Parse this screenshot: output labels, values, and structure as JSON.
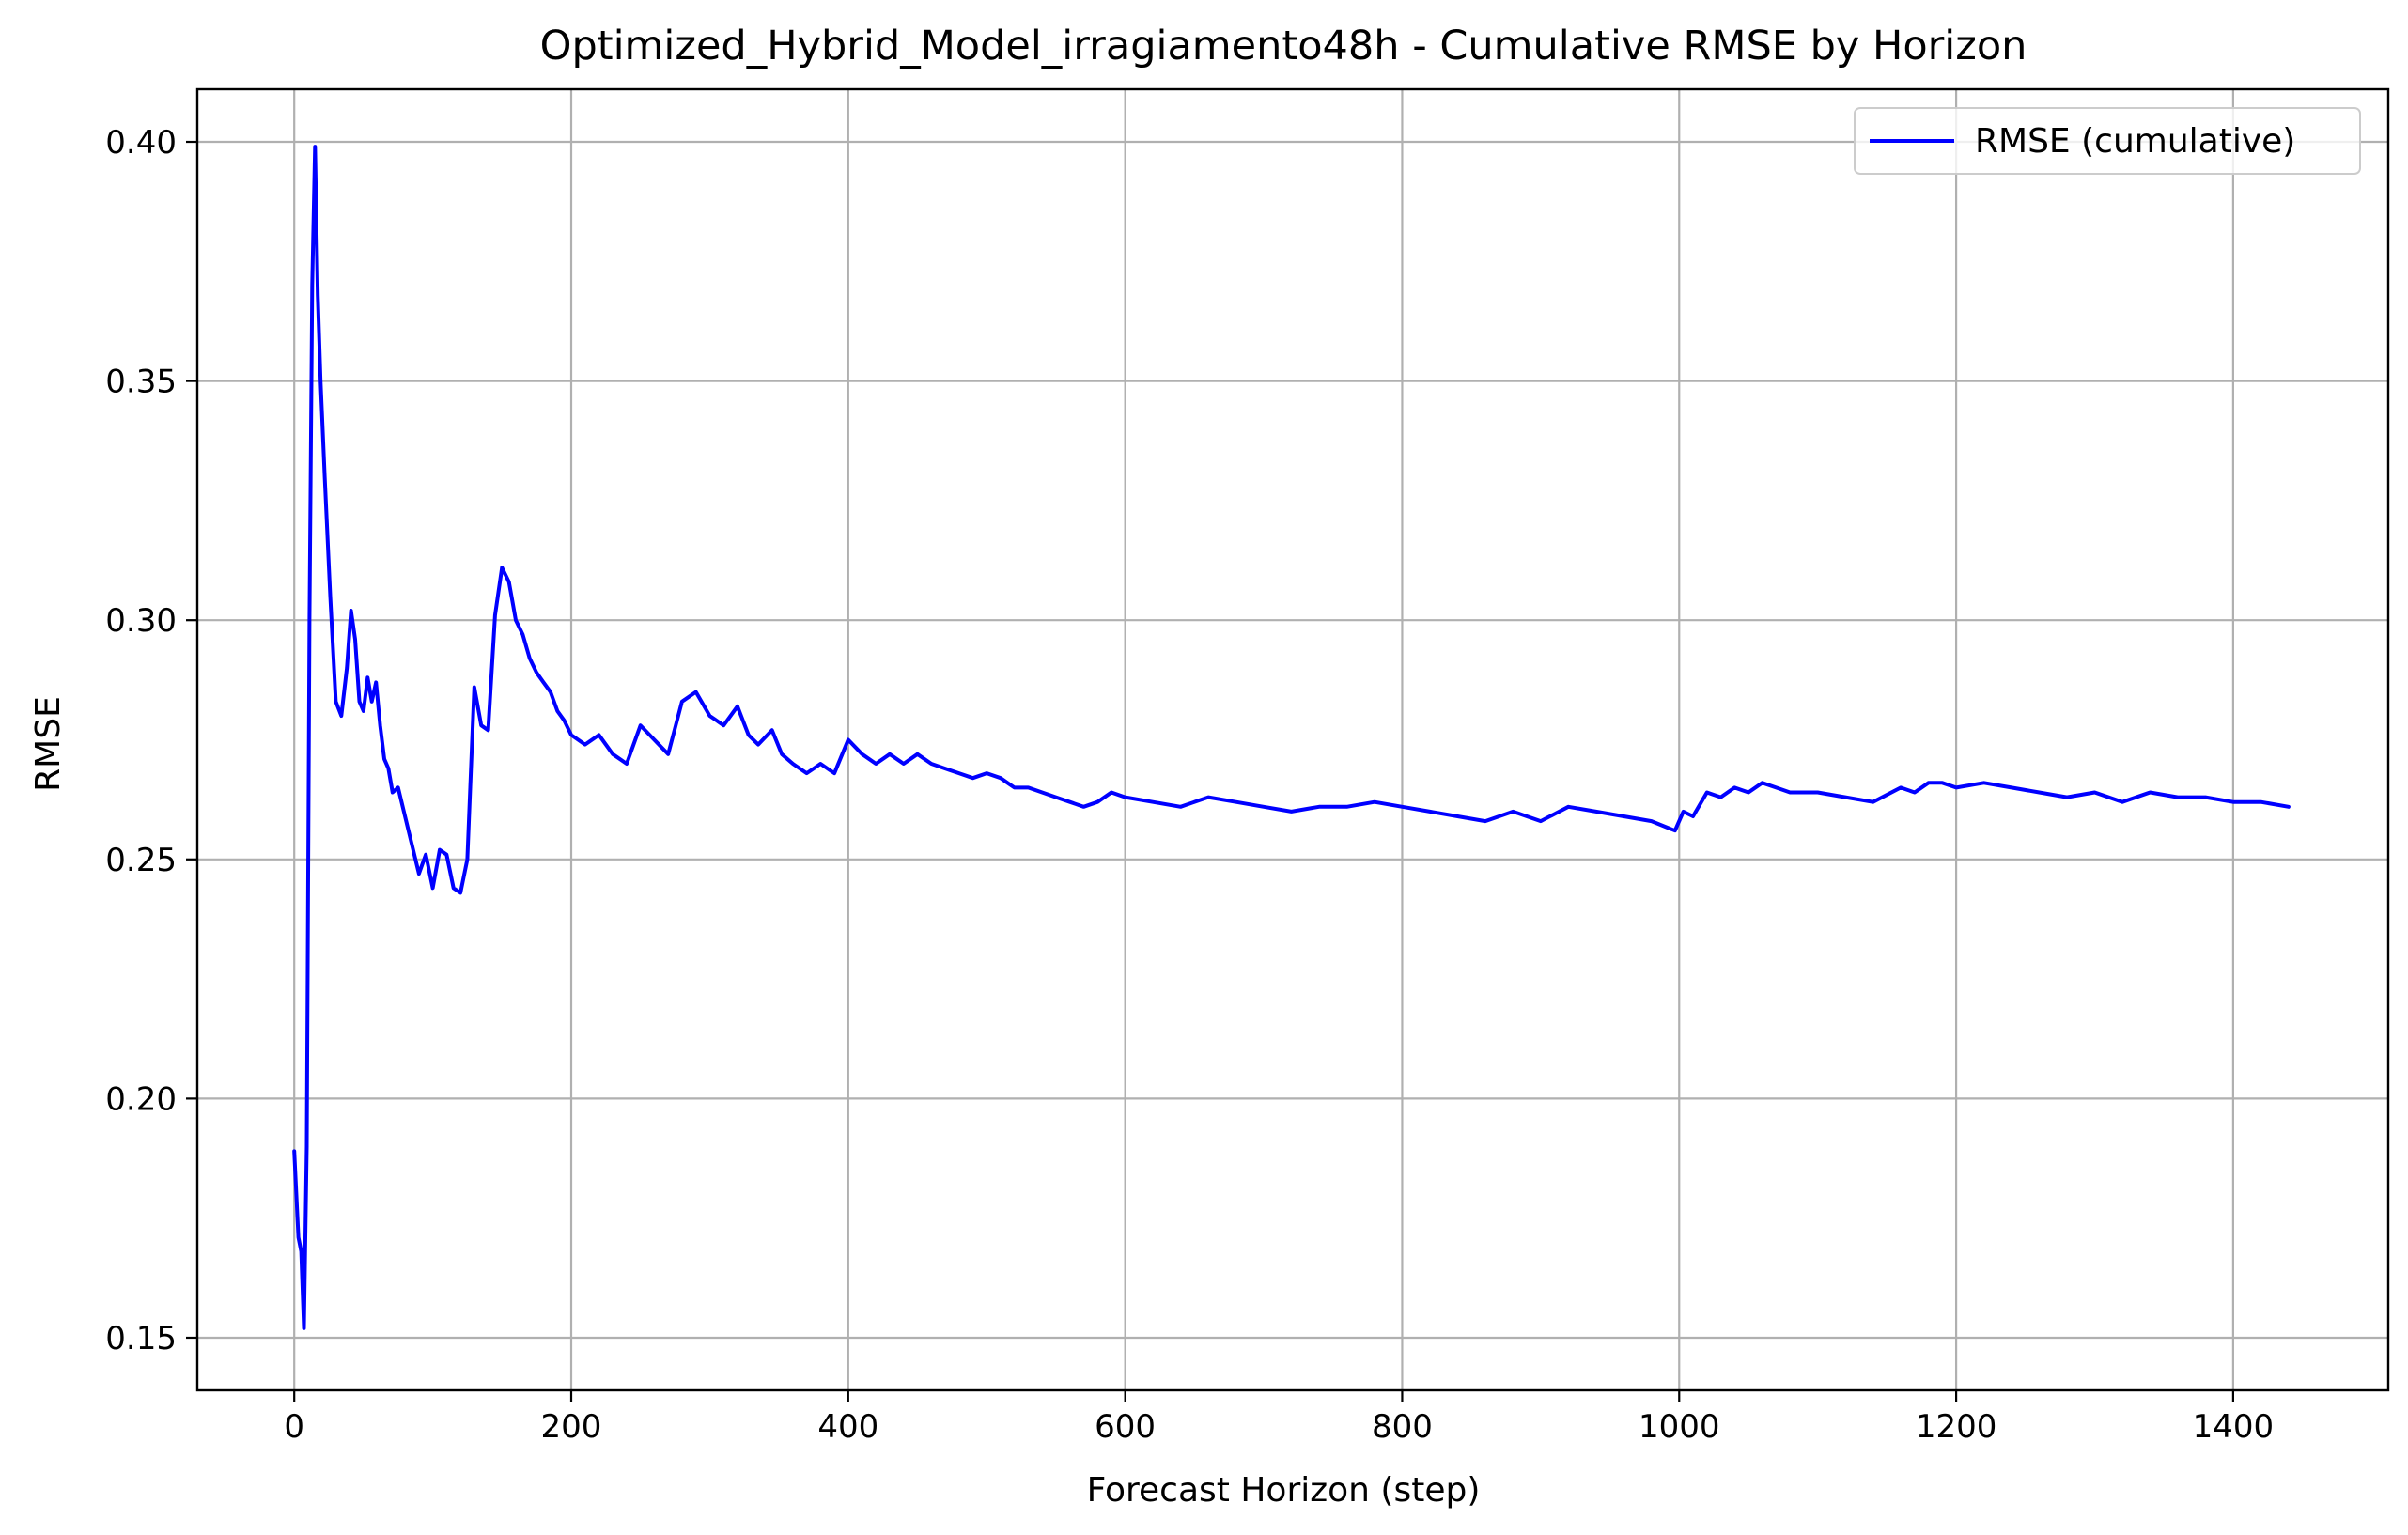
{
  "chart_data": {
    "type": "line",
    "title": "Optimized_Hybrid_Model_irragiamento48h - Cumulative RMSE by Horizon",
    "xlabel": "Forecast Horizon (step)",
    "ylabel": "RMSE",
    "xlim": [
      -70,
      1512
    ],
    "ylim": [
      0.139,
      0.411
    ],
    "xticks": [
      0,
      200,
      400,
      600,
      800,
      1000,
      1200,
      1400
    ],
    "xtick_labels": [
      "0",
      "200",
      "400",
      "600",
      "800",
      "1000",
      "1200",
      "1400"
    ],
    "yticks": [
      0.15,
      0.2,
      0.25,
      0.3,
      0.35,
      0.4
    ],
    "ytick_labels": [
      "0.15",
      "0.20",
      "0.25",
      "0.30",
      "0.35",
      "0.40"
    ],
    "grid": true,
    "legend_position": "upper right",
    "series": [
      {
        "name": "RMSE (cumulative)",
        "color": "#0000ff",
        "x": [
          0,
          3,
          5,
          7,
          9,
          11,
          13,
          15,
          17,
          19,
          22,
          26,
          30,
          34,
          38,
          41,
          44,
          47,
          50,
          53,
          56,
          59,
          62,
          65,
          68,
          71,
          75,
          80,
          85,
          90,
          95,
          100,
          105,
          110,
          115,
          120,
          125,
          130,
          135,
          140,
          145,
          150,
          155,
          160,
          165,
          170,
          175,
          180,
          185,
          190,
          195,
          200,
          210,
          220,
          230,
          240,
          250,
          260,
          270,
          280,
          290,
          300,
          310,
          320,
          328,
          335,
          345,
          352,
          360,
          370,
          375,
          380,
          390,
          400,
          410,
          420,
          430,
          440,
          450,
          460,
          470,
          480,
          490,
          500,
          510,
          515,
          520,
          530,
          540,
          550,
          560,
          570,
          580,
          590,
          600,
          620,
          640,
          660,
          680,
          700,
          720,
          740,
          760,
          780,
          800,
          820,
          840,
          860,
          880,
          900,
          920,
          940,
          960,
          980,
          997,
          1003,
          1010,
          1020,
          1030,
          1040,
          1050,
          1060,
          1070,
          1080,
          1100,
          1120,
          1140,
          1160,
          1170,
          1180,
          1190,
          1200,
          1220,
          1240,
          1260,
          1280,
          1300,
          1320,
          1340,
          1360,
          1380,
          1400,
          1420,
          1440
        ],
        "y": [
          0.189,
          0.171,
          0.168,
          0.152,
          0.19,
          0.3,
          0.37,
          0.399,
          0.368,
          0.35,
          0.33,
          0.305,
          0.283,
          0.28,
          0.29,
          0.302,
          0.296,
          0.283,
          0.281,
          0.288,
          0.283,
          0.287,
          0.278,
          0.271,
          0.269,
          0.264,
          0.265,
          0.259,
          0.253,
          0.247,
          0.251,
          0.244,
          0.252,
          0.251,
          0.244,
          0.243,
          0.25,
          0.286,
          0.278,
          0.277,
          0.301,
          0.311,
          0.308,
          0.3,
          0.297,
          0.292,
          0.289,
          0.287,
          0.285,
          0.281,
          0.279,
          0.276,
          0.274,
          0.276,
          0.272,
          0.27,
          0.278,
          0.275,
          0.272,
          0.283,
          0.285,
          0.28,
          0.278,
          0.282,
          0.276,
          0.274,
          0.277,
          0.272,
          0.27,
          0.268,
          0.269,
          0.27,
          0.268,
          0.275,
          0.272,
          0.27,
          0.272,
          0.27,
          0.272,
          0.27,
          0.269,
          0.268,
          0.267,
          0.268,
          0.267,
          0.266,
          0.265,
          0.265,
          0.264,
          0.263,
          0.262,
          0.261,
          0.262,
          0.264,
          0.263,
          0.262,
          0.261,
          0.263,
          0.262,
          0.261,
          0.26,
          0.261,
          0.261,
          0.262,
          0.261,
          0.26,
          0.259,
          0.258,
          0.26,
          0.258,
          0.261,
          0.26,
          0.259,
          0.258,
          0.256,
          0.26,
          0.259,
          0.264,
          0.263,
          0.265,
          0.264,
          0.266,
          0.265,
          0.264,
          0.264,
          0.263,
          0.262,
          0.265,
          0.264,
          0.266,
          0.266,
          0.265,
          0.266,
          0.265,
          0.264,
          0.263,
          0.264,
          0.262,
          0.264,
          0.263,
          0.263,
          0.262,
          0.262,
          0.261
        ]
      }
    ]
  }
}
